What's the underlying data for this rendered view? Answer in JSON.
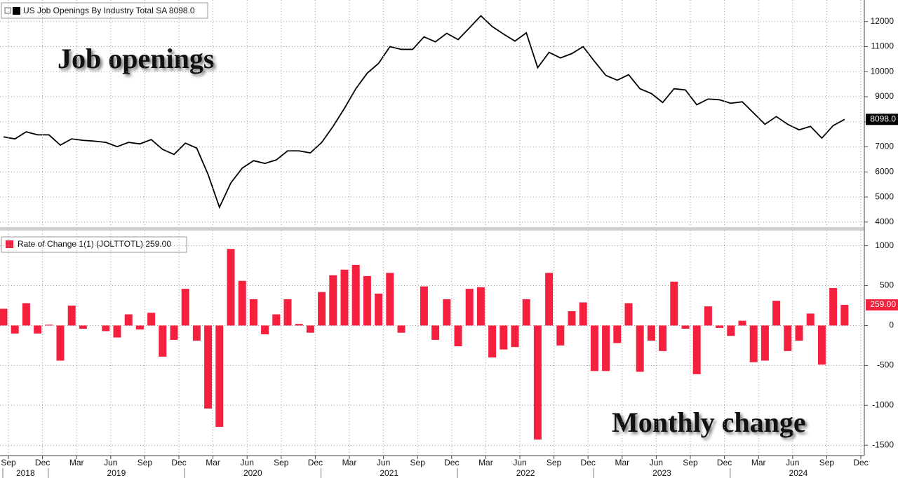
{
  "chart_data": [
    {
      "type": "line",
      "annotation": "Job openings",
      "series": [
        {
          "name": "US Job Openings By Industry Total SA 8098.0",
          "color": "#000000",
          "values": [
            7400,
            7320,
            7600,
            7480,
            7480,
            7070,
            7320,
            7260,
            7230,
            7180,
            7010,
            7180,
            7120,
            7290,
            6900,
            6700,
            7150,
            6950,
            5900,
            4590,
            5560,
            6150,
            6450,
            6340,
            6480,
            6840,
            6840,
            6760,
            7180,
            7820,
            8540,
            9320,
            9940,
            10330,
            11000,
            10890,
            10890,
            11390,
            11190,
            11530,
            11280,
            11750,
            12230,
            11800,
            11500,
            11220,
            11550,
            10160,
            10770,
            10550,
            10720,
            11000,
            10410,
            9850,
            9660,
            9880,
            9320,
            9130,
            8770,
            9320,
            9270,
            8680,
            8910,
            8880,
            8740,
            8800,
            8350,
            7900,
            8210,
            7900,
            7680,
            7820,
            7350,
            7850,
            8098,
            null
          ]
        }
      ],
      "last_label": "8098.0",
      "ylim": [
        3800,
        12860
      ],
      "yticks": [
        4000,
        5000,
        6000,
        7000,
        8000,
        9000,
        10000,
        11000,
        12000
      ],
      "grid": true
    },
    {
      "type": "bar",
      "annotation": "Monthly change",
      "categories": [
        "Sep",
        null,
        null,
        "Dec",
        null,
        null,
        "Mar",
        null,
        null,
        "Jun",
        null,
        null,
        "Sep",
        null,
        null,
        "Dec",
        null,
        null,
        "Mar",
        null,
        null,
        "Jun",
        null,
        null,
        "Sep",
        null,
        null,
        "Dec",
        null,
        null,
        "Mar",
        null,
        null,
        "Jun",
        null,
        null,
        "Sep",
        null,
        null,
        "Dec",
        null,
        null,
        "Mar",
        null,
        null,
        "Jun",
        null,
        null,
        "Sep",
        null,
        null,
        "Dec",
        null,
        null,
        "Mar",
        null,
        null,
        "Jun",
        null,
        null,
        "Sep",
        null,
        null,
        "Dec",
        null,
        null,
        "Mar",
        null,
        null,
        "Jun",
        null,
        null,
        "Sep",
        null,
        null,
        "Dec"
      ],
      "year_labels": [
        "2018",
        "2019",
        "2020",
        "2021",
        "2022",
        "2023",
        "2024"
      ],
      "series": [
        {
          "name": "Rate of Change 1(1) (JOLTTOTL) 259.00",
          "color": "#f5203e",
          "values": [
            210,
            -100,
            280,
            -100,
            10,
            -440,
            250,
            -40,
            0,
            -70,
            -150,
            140,
            -50,
            160,
            -390,
            -180,
            460,
            -190,
            -1040,
            -1270,
            960,
            560,
            330,
            -110,
            140,
            330,
            20,
            -90,
            420,
            630,
            700,
            760,
            620,
            400,
            660,
            -90,
            0,
            490,
            -180,
            330,
            -260,
            460,
            480,
            -400,
            -300,
            -270,
            330,
            -1430,
            660,
            -250,
            180,
            290,
            -570,
            -570,
            -220,
            280,
            -580,
            -190,
            -320,
            550,
            -40,
            -610,
            240,
            -30,
            -130,
            60,
            -460,
            -440,
            310,
            -320,
            -190,
            150,
            -490,
            470,
            259,
            null
          ]
        }
      ],
      "last_label": "259.00",
      "ylim": [
        -1630,
        1190
      ],
      "yticks": [
        -1500,
        -1000,
        -500,
        0,
        500,
        1000
      ],
      "grid": true
    }
  ]
}
